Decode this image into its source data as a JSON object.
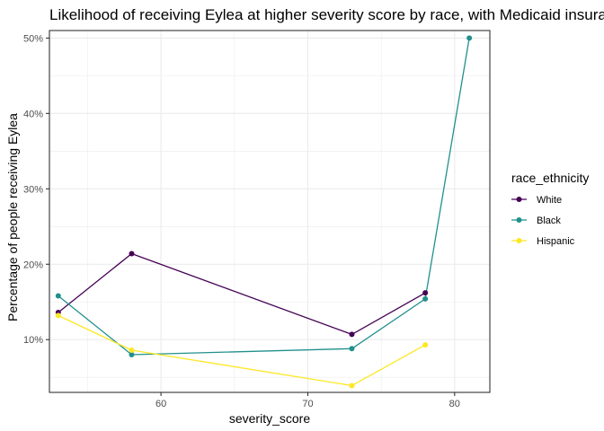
{
  "chart_data": {
    "type": "line",
    "title": "Likelihood of receiving Eylea at higher severity score by race, with Medicaid insurance",
    "xlabel": "severity_score",
    "ylabel": "Percentage of people receiving Eylea",
    "xlim": [
      52.4,
      82.4
    ],
    "ylim": [
      3.0,
      51.0
    ],
    "x_ticks": [
      60,
      70,
      80
    ],
    "x_tick_labels": [
      "60",
      "70",
      "80"
    ],
    "y_ticks": [
      10,
      20,
      30,
      40,
      50
    ],
    "y_tick_labels": [
      "10%",
      "20%",
      "30%",
      "40%",
      "50%"
    ],
    "grid": true,
    "legend_title": "race_ethnicity",
    "legend_position": "right",
    "series": [
      {
        "name": "White",
        "color": "#440154",
        "points": [
          {
            "x": 53,
            "y": 13.6
          },
          {
            "x": 58,
            "y": 21.4
          },
          {
            "x": 73,
            "y": 10.7
          },
          {
            "x": 78,
            "y": 16.2
          }
        ]
      },
      {
        "name": "Black",
        "color": "#21908C",
        "points": [
          {
            "x": 53,
            "y": 15.8
          },
          {
            "x": 58,
            "y": 8.0
          },
          {
            "x": 73,
            "y": 8.8
          },
          {
            "x": 78,
            "y": 15.4
          },
          {
            "x": 81,
            "y": 50.0
          }
        ]
      },
      {
        "name": "Hispanic",
        "color": "#FDE725",
        "points": [
          {
            "x": 53,
            "y": 13.2
          },
          {
            "x": 58,
            "y": 8.6
          },
          {
            "x": 73,
            "y": 3.9
          },
          {
            "x": 78,
            "y": 9.3
          }
        ]
      }
    ]
  }
}
